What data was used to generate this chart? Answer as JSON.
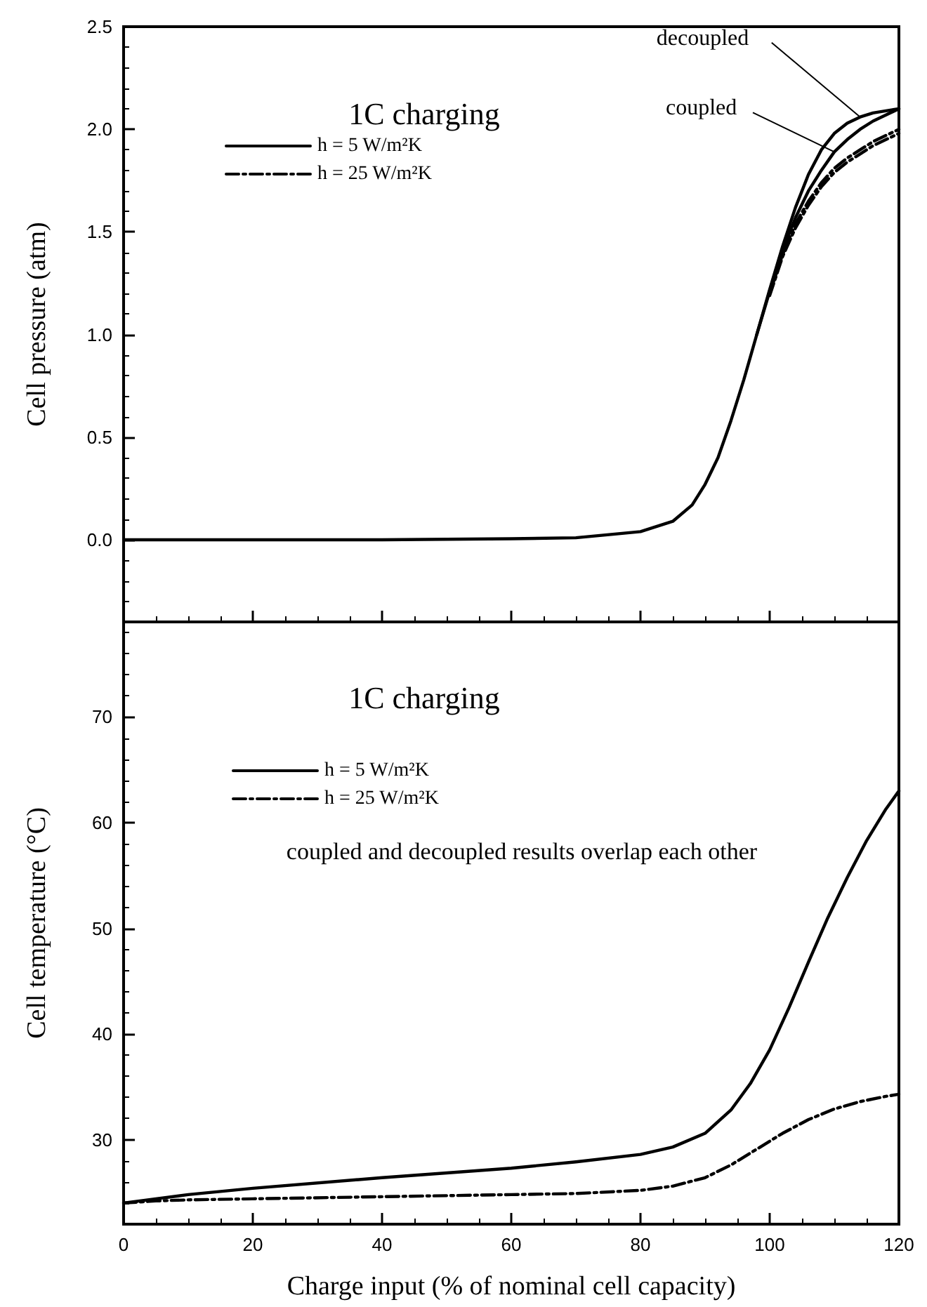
{
  "chart_data": [
    {
      "type": "line",
      "ylabel": "Cell pressure (atm)",
      "annotations": [
        "1C charging",
        {
          "text": "decoupled",
          "x": 114,
          "y": 2.06
        },
        {
          "text": "coupled",
          "x": 110,
          "y": 1.89
        }
      ],
      "xlim": [
        0,
        120
      ],
      "xticks": [
        {
          "value": 0,
          "label": null
        },
        {
          "value": 20,
          "label": null
        },
        {
          "value": 40,
          "label": null
        },
        {
          "value": 60,
          "label": null
        },
        {
          "value": 80,
          "label": null
        },
        {
          "value": 100,
          "label": null
        },
        {
          "value": 120,
          "label": null
        }
      ],
      "ylim": [
        -0.4,
        2.5
      ],
      "yticks": [
        {
          "value": 0,
          "label": "0.0"
        },
        {
          "value": 0.5,
          "label": "0.5"
        },
        {
          "value": 1,
          "label": "1.0"
        },
        {
          "value": 1.5,
          "label": "1.5"
        },
        {
          "value": 2,
          "label": "2.0"
        },
        {
          "value": 2.5,
          "label": "2.5"
        }
      ],
      "tick_labels": "y",
      "grid": false,
      "legend": "top left",
      "marker": "none",
      "series": [
        {
          "name": "h = 5 W/m²K",
          "color": "#000000",
          "line_style": "solid",
          "x": [
            0,
            20,
            40,
            60,
            70,
            80,
            85,
            88,
            90,
            92,
            94,
            96,
            98,
            100,
            102,
            104,
            106,
            108,
            110,
            112,
            114,
            116,
            118,
            120
          ],
          "values": [
            0,
            0,
            0,
            0.005,
            0.01,
            0.04,
            0.09,
            0.17,
            0.27,
            0.4,
            0.58,
            0.78,
            1.0,
            1.22,
            1.43,
            1.62,
            1.78,
            1.9,
            1.98,
            2.03,
            2.06,
            2.08,
            2.09,
            2.1
          ]
        },
        {
          "color": "#000000",
          "line_style": "solid",
          "x": [
            98,
            100,
            102,
            104,
            106,
            108,
            110,
            112,
            114,
            116,
            118,
            120
          ],
          "values": [
            1.0,
            1.21,
            1.41,
            1.57,
            1.7,
            1.8,
            1.89,
            1.95,
            2.0,
            2.04,
            2.07,
            2.1
          ]
        },
        {
          "name": "h = 25 W/m²K",
          "color": "#000000",
          "line_style": "dashdot",
          "x": [
            100,
            102,
            104,
            106,
            108,
            110,
            112,
            114,
            116,
            118,
            120
          ],
          "values": [
            1.2,
            1.39,
            1.54,
            1.65,
            1.74,
            1.81,
            1.86,
            1.9,
            1.94,
            1.97,
            2.0
          ]
        },
        {
          "color": "#000000",
          "line_style": "dashdot",
          "x": [
            100,
            102,
            104,
            106,
            108,
            110,
            112,
            114,
            116,
            118,
            120
          ],
          "values": [
            1.19,
            1.38,
            1.52,
            1.63,
            1.72,
            1.79,
            1.84,
            1.88,
            1.92,
            1.95,
            1.98
          ]
        }
      ]
    },
    {
      "type": "line",
      "xlabel": "Charge input (% of nominal cell capacity)",
      "ylabel": "Cell temperature (°C)",
      "annotations": [
        "1C charging",
        "coupled and decoupled results overlap each other"
      ],
      "xlim": [
        0,
        120
      ],
      "xticks": [
        0,
        20,
        40,
        60,
        80,
        100,
        120
      ],
      "ylim": [
        22,
        79
      ],
      "yticks": [
        30,
        40,
        50,
        60,
        70
      ],
      "grid": false,
      "legend": "top left",
      "marker": "none",
      "series": [
        {
          "name": "h = 5 W/m²K",
          "color": "#000000",
          "line_style": "solid",
          "x": [
            0,
            10,
            20,
            40,
            60,
            70,
            80,
            85,
            90,
            94,
            97,
            100,
            103,
            106,
            109,
            112,
            115,
            118,
            120
          ],
          "values": [
            24,
            24.8,
            25.4,
            26.4,
            27.3,
            27.9,
            28.6,
            29.3,
            30.6,
            32.8,
            35.3,
            38.5,
            42.5,
            46.8,
            51,
            54.8,
            58.3,
            61.3,
            63
          ]
        },
        {
          "name": "h = 25 W/m²K",
          "color": "#000000",
          "line_style": "dashdot",
          "x": [
            0,
            5,
            10,
            20,
            40,
            60,
            70,
            80,
            85,
            90,
            94,
            98,
            102,
            106,
            110,
            114,
            118,
            120
          ],
          "values": [
            24,
            24.2,
            24.3,
            24.4,
            24.6,
            24.8,
            24.9,
            25.2,
            25.6,
            26.4,
            27.6,
            29.1,
            30.6,
            31.9,
            32.9,
            33.6,
            34.1,
            34.3
          ]
        }
      ]
    }
  ]
}
